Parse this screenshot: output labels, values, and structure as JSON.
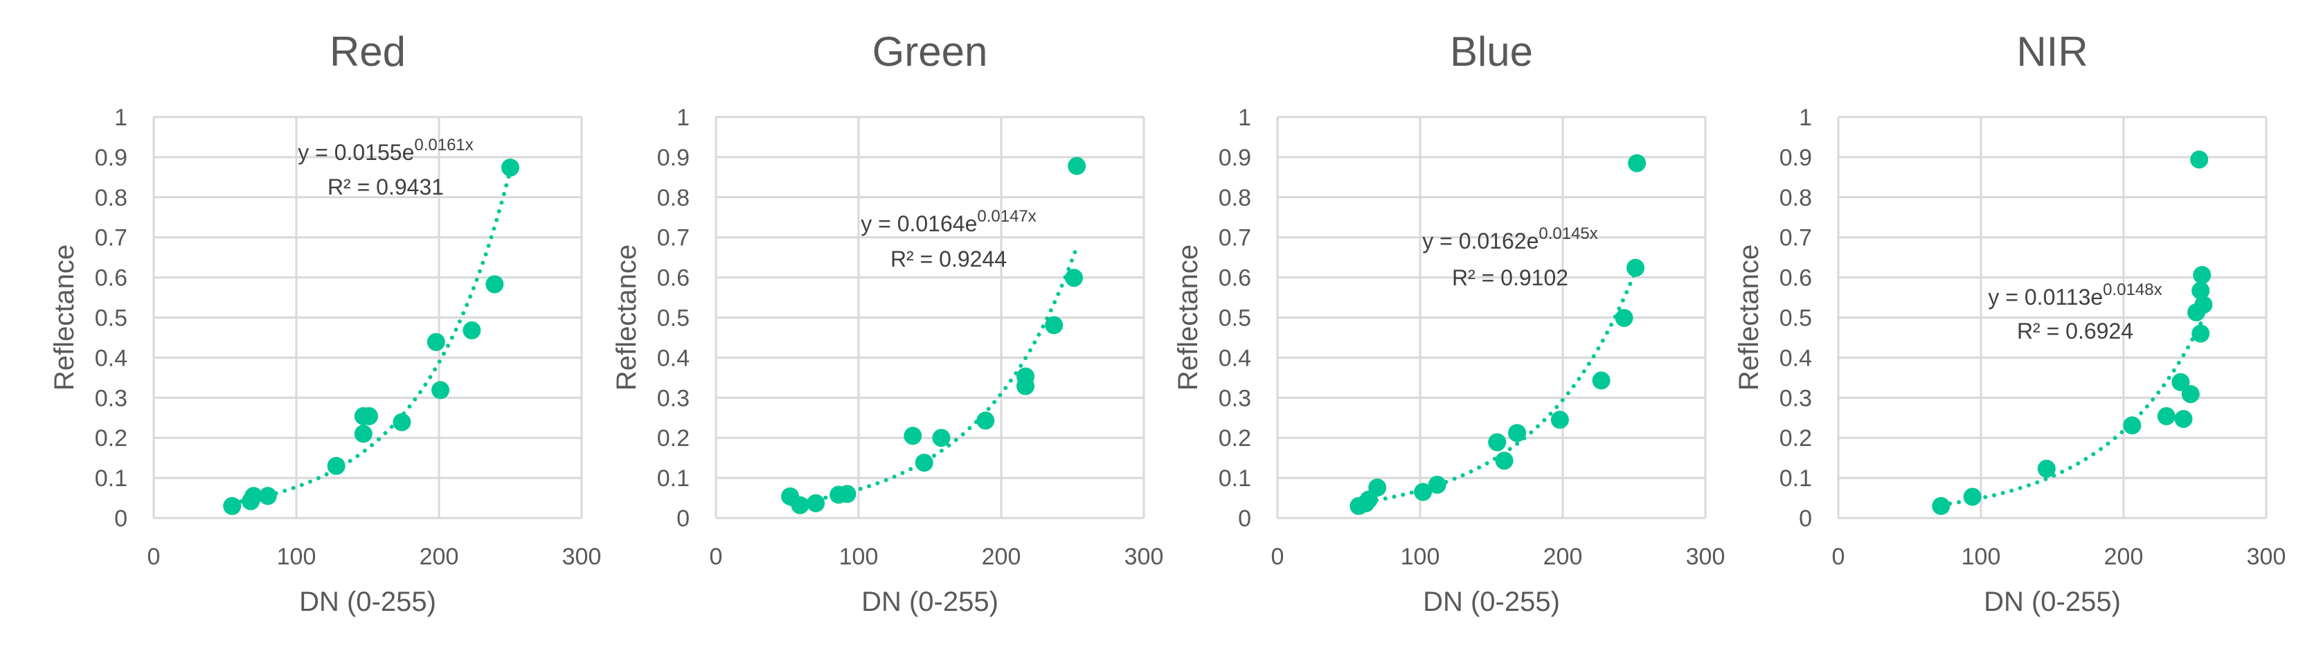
{
  "colors": {
    "marker": "#00C896",
    "trendline": "#00C896",
    "text": "#595959",
    "grid": "#D9D9D9"
  },
  "chart_data": [
    {
      "type": "scatter",
      "title": "Red",
      "xlabel": "DN (0-255)",
      "ylabel": "Reflectance",
      "xlim": [
        0,
        300
      ],
      "ylim": [
        0,
        1
      ],
      "xticks": [
        "0",
        "100",
        "200",
        "300"
      ],
      "yticks": [
        "0",
        "0.1",
        "0.2",
        "0.3",
        "0.4",
        "0.5",
        "0.6",
        "0.7",
        "0.8",
        "0.9",
        "1"
      ],
      "grid": true,
      "x": [
        55,
        68,
        70,
        80,
        128,
        147,
        147,
        151,
        174,
        198,
        201,
        223,
        239,
        250
      ],
      "y": [
        0.03,
        0.042,
        0.055,
        0.055,
        0.13,
        0.21,
        0.254,
        0.254,
        0.239,
        0.439,
        0.319,
        0.468,
        0.583,
        0.874
      ],
      "trendline": {
        "type": "exponential",
        "a": 0.0155,
        "b": 0.0161,
        "equation": "y = 0.0155e",
        "exponent": "0.0161x",
        "r2": "R² = 0.9431"
      }
    },
    {
      "type": "scatter",
      "title": "Green",
      "xlabel": "DN (0-255)",
      "ylabel": "Reflectance",
      "xlim": [
        0,
        300
      ],
      "ylim": [
        0,
        1
      ],
      "xticks": [
        "0",
        "100",
        "200",
        "300"
      ],
      "yticks": [
        "0",
        "0.1",
        "0.2",
        "0.3",
        "0.4",
        "0.5",
        "0.6",
        "0.7",
        "0.8",
        "0.9",
        "1"
      ],
      "grid": true,
      "x": [
        52,
        59,
        70,
        86,
        92,
        138,
        146,
        158,
        189,
        217,
        217,
        237,
        251,
        253
      ],
      "y": [
        0.054,
        0.032,
        0.037,
        0.058,
        0.06,
        0.205,
        0.138,
        0.2,
        0.243,
        0.353,
        0.329,
        0.481,
        0.599,
        0.878
      ],
      "trendline": {
        "type": "exponential",
        "a": 0.0164,
        "b": 0.0147,
        "equation": "y = 0.0164e",
        "exponent": "0.0147x",
        "r2": "R² = 0.9244"
      }
    },
    {
      "type": "scatter",
      "title": "Blue",
      "xlabel": "DN (0-255)",
      "ylabel": "Reflectance",
      "xlim": [
        0,
        300
      ],
      "ylim": [
        0,
        1
      ],
      "xticks": [
        "0",
        "100",
        "200",
        "300"
      ],
      "yticks": [
        "0",
        "0.1",
        "0.2",
        "0.3",
        "0.4",
        "0.5",
        "0.6",
        "0.7",
        "0.8",
        "0.9",
        "1"
      ],
      "grid": true,
      "x": [
        57,
        62,
        64,
        70,
        102,
        112,
        154,
        159,
        168,
        198,
        227,
        243,
        251,
        252
      ],
      "y": [
        0.03,
        0.037,
        0.046,
        0.076,
        0.065,
        0.083,
        0.189,
        0.143,
        0.212,
        0.245,
        0.343,
        0.499,
        0.624,
        0.885
      ],
      "trendline": {
        "type": "exponential",
        "a": 0.0162,
        "b": 0.0145,
        "equation": "y = 0.0162e",
        "exponent": "0.0145x",
        "r2": "R² = 0.9102"
      }
    },
    {
      "type": "scatter",
      "title": "NIR",
      "xlabel": "DN (0-255)",
      "ylabel": "Reflectance",
      "xlim": [
        0,
        300
      ],
      "ylim": [
        0,
        1
      ],
      "xticks": [
        "0",
        "100",
        "200",
        "300"
      ],
      "yticks": [
        "0",
        "0.1",
        "0.2",
        "0.3",
        "0.4",
        "0.5",
        "0.6",
        "0.7",
        "0.8",
        "0.9",
        "1"
      ],
      "grid": true,
      "x": [
        72,
        94,
        146,
        206,
        230,
        242,
        240,
        247,
        254,
        251,
        256,
        254,
        255,
        253
      ],
      "y": [
        0.03,
        0.053,
        0.123,
        0.231,
        0.254,
        0.247,
        0.339,
        0.309,
        0.46,
        0.513,
        0.532,
        0.567,
        0.606,
        0.894
      ],
      "trendline": {
        "type": "exponential",
        "a": 0.0113,
        "b": 0.0148,
        "equation": "y = 0.0113e",
        "exponent": "0.0148x",
        "r2": "R² = 0.6924"
      }
    }
  ]
}
